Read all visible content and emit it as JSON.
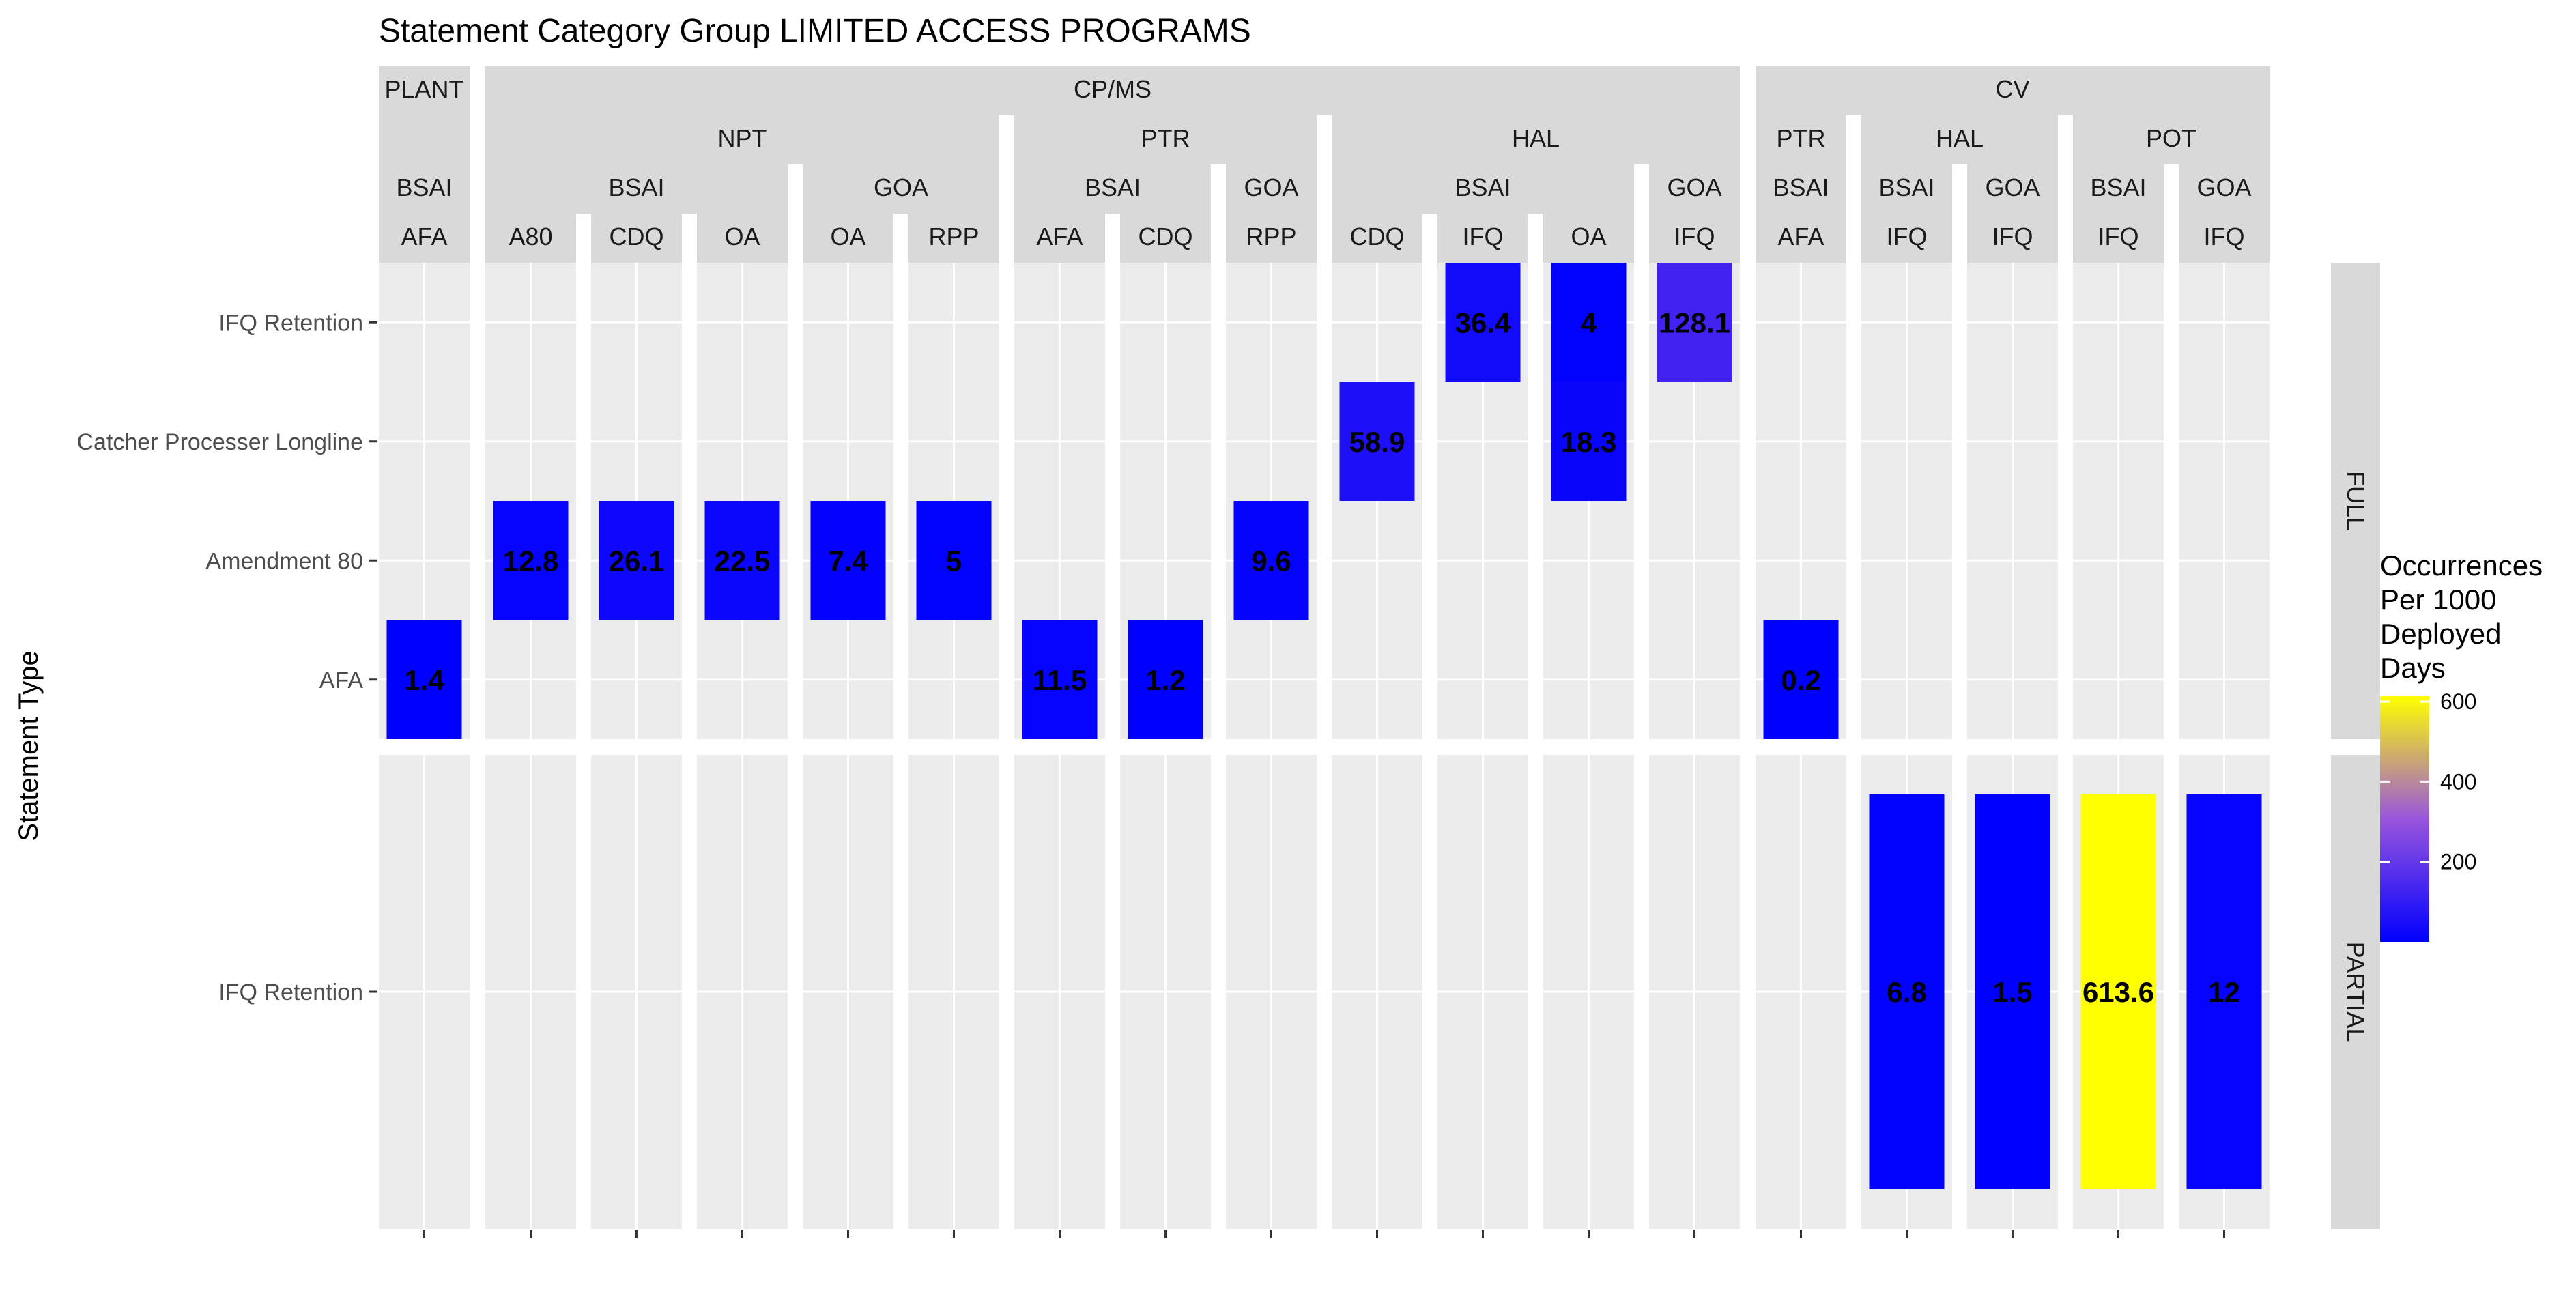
{
  "chart_data": {
    "type": "heatmap",
    "title": "Statement Category Group LIMITED ACCESS PROGRAMS",
    "ylabel": "Statement Type",
    "xlabel": "",
    "columns": [
      {
        "sector": "PLANT",
        "program": "",
        "region": "BSAI",
        "fmp": "AFA"
      },
      {
        "sector": "CP/MS",
        "program": "NPT",
        "region": "BSAI",
        "fmp": "A80"
      },
      {
        "sector": "CP/MS",
        "program": "NPT",
        "region": "BSAI",
        "fmp": "CDQ"
      },
      {
        "sector": "CP/MS",
        "program": "NPT",
        "region": "BSAI",
        "fmp": "OA"
      },
      {
        "sector": "CP/MS",
        "program": "NPT",
        "region": "GOA",
        "fmp": "OA"
      },
      {
        "sector": "CP/MS",
        "program": "NPT",
        "region": "GOA",
        "fmp": "RPP"
      },
      {
        "sector": "CP/MS",
        "program": "PTR",
        "region": "BSAI",
        "fmp": "AFA"
      },
      {
        "sector": "CP/MS",
        "program": "PTR",
        "region": "BSAI",
        "fmp": "CDQ"
      },
      {
        "sector": "CP/MS",
        "program": "PTR",
        "region": "GOA",
        "fmp": "RPP"
      },
      {
        "sector": "CP/MS",
        "program": "HAL",
        "region": "BSAI",
        "fmp": "CDQ"
      },
      {
        "sector": "CP/MS",
        "program": "HAL",
        "region": "BSAI",
        "fmp": "IFQ"
      },
      {
        "sector": "CP/MS",
        "program": "HAL",
        "region": "BSAI",
        "fmp": "OA"
      },
      {
        "sector": "CP/MS",
        "program": "HAL",
        "region": "GOA",
        "fmp": "IFQ"
      },
      {
        "sector": "CV",
        "program": "PTR",
        "region": "BSAI",
        "fmp": "AFA"
      },
      {
        "sector": "CV",
        "program": "HAL",
        "region": "BSAI",
        "fmp": "IFQ"
      },
      {
        "sector": "CV",
        "program": "HAL",
        "region": "GOA",
        "fmp": "IFQ"
      },
      {
        "sector": "CV",
        "program": "POT",
        "region": "BSAI",
        "fmp": "IFQ"
      },
      {
        "sector": "CV",
        "program": "POT",
        "region": "GOA",
        "fmp": "IFQ"
      }
    ],
    "panels": [
      {
        "name": "FULL",
        "rows": [
          "IFQ Retention",
          "Catcher Processer Longline",
          "Amendment 80",
          "AFA"
        ]
      },
      {
        "name": "PARTIAL",
        "rows": [
          "IFQ Retention"
        ]
      }
    ],
    "cells": [
      {
        "col": 0,
        "panel": 0,
        "row": "AFA",
        "value": 1.4
      },
      {
        "col": 1,
        "panel": 0,
        "row": "Amendment 80",
        "value": 12.8
      },
      {
        "col": 2,
        "panel": 0,
        "row": "Amendment 80",
        "value": 26.1
      },
      {
        "col": 3,
        "panel": 0,
        "row": "Amendment 80",
        "value": 22.5
      },
      {
        "col": 4,
        "panel": 0,
        "row": "Amendment 80",
        "value": 7.4
      },
      {
        "col": 5,
        "panel": 0,
        "row": "Amendment 80",
        "value": 5
      },
      {
        "col": 6,
        "panel": 0,
        "row": "AFA",
        "value": 11.5
      },
      {
        "col": 7,
        "panel": 0,
        "row": "AFA",
        "value": 1.2
      },
      {
        "col": 8,
        "panel": 0,
        "row": "Amendment 80",
        "value": 9.6
      },
      {
        "col": 9,
        "panel": 0,
        "row": "Catcher Processer Longline",
        "value": 58.9
      },
      {
        "col": 10,
        "panel": 0,
        "row": "IFQ Retention",
        "value": 36.4
      },
      {
        "col": 11,
        "panel": 0,
        "row": "IFQ Retention",
        "value": 4
      },
      {
        "col": 11,
        "panel": 0,
        "row": "Catcher Processer Longline",
        "value": 18.3
      },
      {
        "col": 12,
        "panel": 0,
        "row": "IFQ Retention",
        "value": 128.1
      },
      {
        "col": 13,
        "panel": 0,
        "row": "AFA",
        "value": 0.2
      },
      {
        "col": 14,
        "panel": 1,
        "row": "IFQ Retention",
        "value": 6.8
      },
      {
        "col": 15,
        "panel": 1,
        "row": "IFQ Retention",
        "value": 1.5
      },
      {
        "col": 16,
        "panel": 1,
        "row": "IFQ Retention",
        "value": 613.6
      },
      {
        "col": 17,
        "panel": 1,
        "row": "IFQ Retention",
        "value": 12
      }
    ],
    "legend": {
      "title": [
        "Occurrences",
        "Per 1000",
        "Deployed",
        "Days"
      ],
      "ticks": [
        200,
        400,
        600
      ],
      "low_color": "#0000ff",
      "mid_color": "#9955dd",
      "high_color": "#ffff00",
      "min": 0.2,
      "max": 613.6,
      "placement": "right"
    },
    "colors": {
      "panel_bg": "#ebebeb",
      "strip_bg": "#d9d9d9",
      "grid": "#ffffff"
    }
  }
}
